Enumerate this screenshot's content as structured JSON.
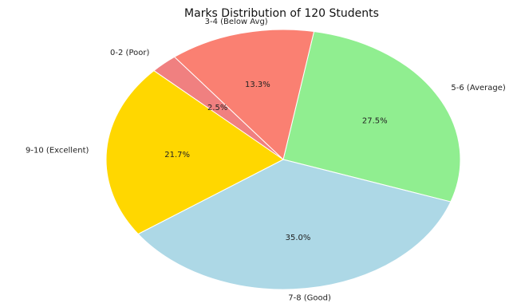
{
  "chart_data": {
    "type": "pie",
    "title": "Marks Distribution of 120 Students",
    "categories": [
      "5-6 (Average)",
      "7-8 (Good)",
      "9-10 (Excellent)",
      "0-2 (Poor)",
      "3-4 (Below Avg)"
    ],
    "values": [
      27.5,
      35.0,
      21.7,
      2.5,
      13.3
    ],
    "value_labels": [
      "27.5%",
      "35.0%",
      "21.7%",
      "2.5%",
      "13.3%"
    ],
    "colors": [
      "#90EE90",
      "#ADD8E6",
      "#FFD700",
      "#F08080",
      "#FA8072"
    ],
    "start_angle_deg": 80,
    "direction": "clockwise",
    "legend": "none"
  }
}
